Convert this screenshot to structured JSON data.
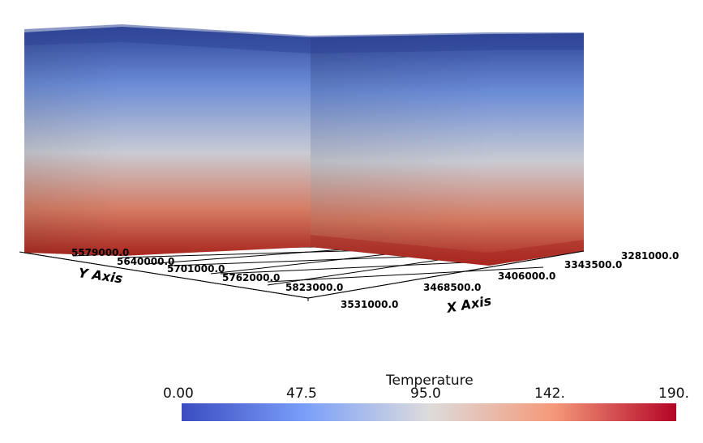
{
  "scene": {
    "colors": {
      "top": "#2f4598",
      "upper": "#6a8bd6",
      "middle": "#c9cbd3",
      "lower": "#d57a62",
      "bottom": "#a8261f",
      "grid": "#000000"
    }
  },
  "axes": {
    "y_title": "Y Axis",
    "x_title": "X Axis",
    "y_ticks": [
      "5579000.0",
      "5640000.0",
      "5701000.0",
      "5762000.0",
      "5823000.0"
    ],
    "x_ticks": [
      "3531000.0",
      "3468500.0",
      "3406000.0",
      "3343500.0",
      "3281000.0"
    ]
  },
  "colorbar": {
    "title": "Temperature",
    "ticks": [
      "0.00",
      "47.5",
      "95.0",
      "142.",
      "190."
    ],
    "colormap": [
      "#3b4cc0",
      "#7b9ff9",
      "#dddcdc",
      "#f49a7b",
      "#b40426"
    ]
  }
}
